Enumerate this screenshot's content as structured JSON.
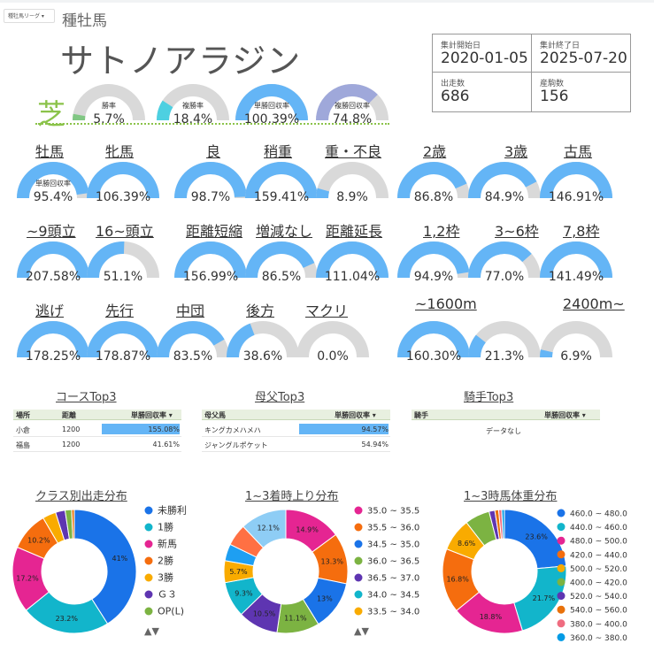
{
  "page_select": "種牡馬リーグ",
  "sub_title": "種牡馬",
  "horse_name": "サトノアラジン",
  "stats": {
    "start_date_label": "集計開始日",
    "start_date": "2020-01-05",
    "end_date_label": "集計終了日",
    "end_date": "2025-07-20",
    "runs_label": "出走数",
    "runs": "686",
    "foals_label": "産駒数",
    "foals": "156"
  },
  "turf_label": "芝",
  "colors": {
    "gauge_blue": "#64b5f6",
    "gauge_track": "#d9d9d9",
    "green": "#81c784",
    "teal": "#4dd0e1",
    "purple": "#9fa8da"
  },
  "top_gauges": [
    {
      "label": "勝率",
      "value": "5.7%",
      "pct": 5.7,
      "color": "#81c784"
    },
    {
      "label": "複勝率",
      "value": "18.4%",
      "pct": 18.4,
      "color": "#4dd0e1"
    },
    {
      "label": "単勝回収率",
      "value": "100.39%",
      "pct": 100.39,
      "color": "#64b5f6"
    },
    {
      "label": "複勝回収率",
      "value": "74.8%",
      "pct": 74.8,
      "color": "#9fa8da"
    }
  ],
  "gauge_label_small": "単勝回収率",
  "categories": {
    "sex": [
      "牡馬",
      "牝馬"
    ],
    "track": [
      "良",
      "稍重",
      "重・不良"
    ],
    "age": [
      "2歳",
      "3歳",
      "古馬"
    ],
    "field": [
      "~9頭立",
      "16~頭立"
    ],
    "distance_change": [
      "距離短縮",
      "増減なし",
      "距離延長"
    ],
    "gate": [
      "1,2枠",
      "3~6枠",
      "7,8枠"
    ],
    "style": [
      "逃げ",
      "先行",
      "中団",
      "後方",
      "マクリ"
    ],
    "dist": [
      "~1600m",
      "2400m~"
    ]
  },
  "gauges": [
    {
      "value": "95.4%",
      "pct": 95.4
    },
    {
      "value": "106.39%",
      "pct": 106.39
    },
    {
      "value": "98.7%",
      "pct": 98.7
    },
    {
      "value": "159.41%",
      "pct": 159.41
    },
    {
      "value": "8.9%",
      "pct": 8.9
    },
    {
      "value": "86.8%",
      "pct": 86.8
    },
    {
      "value": "84.9%",
      "pct": 84.9
    },
    {
      "value": "146.91%",
      "pct": 146.91
    },
    {
      "value": "207.58%",
      "pct": 207.58
    },
    {
      "value": "51.1%",
      "pct": 51.1
    },
    {
      "value": "156.99%",
      "pct": 156.99
    },
    {
      "value": "86.5%",
      "pct": 86.5
    },
    {
      "value": "111.04%",
      "pct": 111.04
    },
    {
      "value": "94.9%",
      "pct": 94.9
    },
    {
      "value": "77.0%",
      "pct": 77.0
    },
    {
      "value": "141.49%",
      "pct": 141.49
    },
    {
      "value": "178.25%",
      "pct": 178.25
    },
    {
      "value": "178.87%",
      "pct": 178.87
    },
    {
      "value": "83.5%",
      "pct": 83.5
    },
    {
      "value": "38.6%",
      "pct": 38.6
    },
    {
      "value": "0.0%",
      "pct": 0.0
    },
    {
      "value": "160.30%",
      "pct": 160.3
    },
    {
      "value": "21.3%",
      "pct": 21.3
    },
    {
      "value": "6.9%",
      "pct": 6.9
    }
  ],
  "course_top3": {
    "title": "コースTop3",
    "headers": [
      "場所",
      "距離",
      "単勝回収率 ▾"
    ],
    "rows": [
      {
        "place": "小倉",
        "dist": "1200",
        "rate": "155.08%",
        "pct": 155.08
      },
      {
        "place": "福島",
        "dist": "1200",
        "rate": "41.61%",
        "pct": 41.61
      }
    ]
  },
  "bms_top3": {
    "title": "母父Top3",
    "headers": [
      "母父馬",
      "単勝回収率 ▾"
    ],
    "rows": [
      {
        "name": "キングカメハメハ",
        "rate": "94.57%",
        "pct": 94.57
      },
      {
        "name": "ジャングルポケット",
        "rate": "54.94%",
        "pct": 54.94
      }
    ]
  },
  "jockey_top3": {
    "title": "騎手Top3",
    "headers": [
      "騎手",
      "単勝回収率 ▾"
    ],
    "empty": "データなし"
  },
  "chart_data": [
    {
      "type": "pie",
      "title": "クラス別出走分布",
      "slices": [
        {
          "name": "未勝利",
          "value": 41,
          "label": "41%",
          "color": "#1a73e8"
        },
        {
          "name": "1勝",
          "value": 23.2,
          "label": "23.2%",
          "color": "#12b5cb"
        },
        {
          "name": "新馬",
          "value": 17.2,
          "label": "17.2%",
          "color": "#e52592"
        },
        {
          "name": "2勝",
          "value": 10.2,
          "label": "10.2%",
          "color": "#f56d0e"
        },
        {
          "name": "3勝",
          "value": 3.5,
          "label": "",
          "color": "#f9ab00"
        },
        {
          "name": "Ｇ３",
          "value": 2.5,
          "label": "",
          "color": "#5e35b1"
        },
        {
          "name": "OP(L)",
          "value": 1.7,
          "label": "",
          "color": "#7cb342"
        },
        {
          "name": "",
          "value": 0.7,
          "label": "",
          "color": "#e8710a"
        }
      ]
    },
    {
      "type": "pie",
      "title": "1~3着時上り分布",
      "slices": [
        {
          "name": "35.0 ~ 35.5",
          "value": 14.9,
          "label": "14.9%",
          "color": "#e52592"
        },
        {
          "name": "35.5 ~ 36.0",
          "value": 13.3,
          "label": "13.3%",
          "color": "#f56d0e"
        },
        {
          "name": "34.5 ~ 35.0",
          "value": 13,
          "label": "13%",
          "color": "#1a73e8"
        },
        {
          "name": "36.0 ~ 36.5",
          "value": 11.1,
          "label": "11.1%",
          "color": "#7cb342"
        },
        {
          "name": "36.5 ~ 37.0",
          "value": 10.5,
          "label": "10.5%",
          "color": "#5e35b1"
        },
        {
          "name": "34.0 ~ 34.5",
          "value": 9.3,
          "label": "9.3%",
          "color": "#12b5cb"
        },
        {
          "name": "33.5 ~ 34.0",
          "value": 5.7,
          "label": "5.7%",
          "color": "#f9ab00"
        },
        {
          "name": "",
          "value": 4.4,
          "label": "",
          "color": "#1e9ff2"
        },
        {
          "name": "",
          "value": 5.7,
          "label": "",
          "color": "#ff7043"
        },
        {
          "name": "",
          "value": 12.1,
          "label": "12.1%",
          "color": "#8ecdf5"
        }
      ]
    },
    {
      "type": "pie",
      "title": "1~3時馬体重分布",
      "slices": [
        {
          "name": "460.0 ~ 480.0",
          "value": 23.6,
          "label": "23.6%",
          "color": "#1a73e8"
        },
        {
          "name": "440.0 ~ 460.0",
          "value": 21.7,
          "label": "21.7%",
          "color": "#12b5cb"
        },
        {
          "name": "480.0 ~ 500.0",
          "value": 18.8,
          "label": "18.8%",
          "color": "#e52592"
        },
        {
          "name": "420.0 ~ 440.0",
          "value": 16.8,
          "label": "16.8%",
          "color": "#f56d0e"
        },
        {
          "name": "500.0 ~ 520.0",
          "value": 8.6,
          "label": "8.6%",
          "color": "#f9ab00"
        },
        {
          "name": "400.0 ~ 420.0",
          "value": 6.5,
          "label": "",
          "color": "#7cb342"
        },
        {
          "name": "520.0 ~ 540.0",
          "value": 1.5,
          "label": "",
          "color": "#5e35b1"
        },
        {
          "name": "540.0 ~ 560.0",
          "value": 1.0,
          "label": "",
          "color": "#e8710a"
        },
        {
          "name": "380.0 ~ 400.0",
          "value": 0.8,
          "label": "",
          "color": "#ef6c80"
        },
        {
          "name": "360.0 ~ 380.0",
          "value": 0.7,
          "label": "",
          "color": "#039be5"
        }
      ]
    }
  ]
}
